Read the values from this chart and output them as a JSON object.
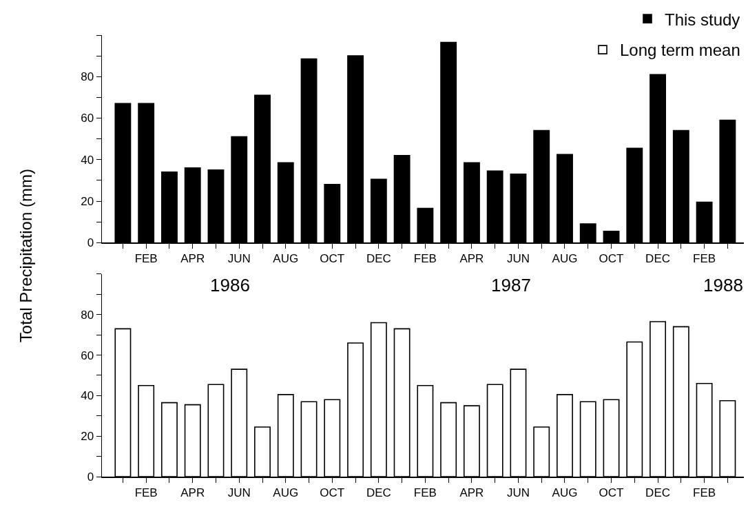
{
  "chart_data": [
    {
      "type": "bar",
      "ylabel": "Total Precipitation (mm)",
      "categories": [
        null,
        "FEB",
        null,
        "APR",
        null,
        "JUN",
        null,
        "AUG",
        null,
        "OCT",
        null,
        "DEC",
        null,
        "FEB",
        null,
        "APR",
        null,
        "JUN",
        null,
        "AUG",
        null,
        "OCT",
        null,
        "DEC",
        null,
        "FEB",
        null
      ],
      "series": [
        {
          "name": "This study",
          "color": "#000000",
          "values": [
            67,
            67,
            34,
            36,
            35,
            51,
            71,
            38.5,
            88.5,
            28,
            90,
            30.5,
            42,
            16.5,
            96.5,
            38.5,
            34.5,
            33,
            54,
            42.5,
            9,
            5.5,
            45.5,
            81,
            54,
            19.5,
            59
          ]
        }
      ],
      "ylim": [
        0,
        100
      ],
      "yticks": [
        0,
        {
          "value": 10,
          "label": null
        },
        20,
        {
          "value": 30,
          "label": null
        },
        40,
        {
          "value": 50,
          "label": null
        },
        60,
        {
          "value": 70,
          "label": null
        },
        80,
        {
          "value": 90,
          "label": null
        },
        {
          "value": 100,
          "label": null
        }
      ],
      "annotations": [
        "1986",
        "1987",
        "1988"
      ],
      "grid": false,
      "legend": "top right"
    },
    {
      "type": "bar",
      "categories": [
        null,
        "FEB",
        null,
        "APR",
        null,
        "JUN",
        null,
        "AUG",
        null,
        "OCT",
        null,
        "DEC",
        null,
        "FEB",
        null,
        "APR",
        null,
        "JUN",
        null,
        "AUG",
        null,
        "OCT",
        null,
        "DEC",
        null,
        "FEB",
        null
      ],
      "series": [
        {
          "name": "Long term mean",
          "color": "#ffffff",
          "values": [
            73,
            45,
            36.5,
            35.5,
            45.5,
            53,
            24.5,
            40.5,
            37,
            38,
            66,
            76,
            73,
            45,
            36.5,
            35,
            45.5,
            53,
            24.5,
            40.5,
            37,
            38,
            66.5,
            76.5,
            74,
            46,
            37.5
          ]
        }
      ],
      "ylim": [
        0,
        100
      ],
      "yticks": [
        0,
        {
          "value": 10,
          "label": null
        },
        20,
        {
          "value": 30,
          "label": null
        },
        40,
        {
          "value": 50,
          "label": null
        },
        60,
        {
          "value": 70,
          "label": null
        },
        80,
        {
          "value": 90,
          "label": null
        },
        {
          "value": 100,
          "label": null
        }
      ],
      "grid": false,
      "legend": "top right"
    }
  ]
}
